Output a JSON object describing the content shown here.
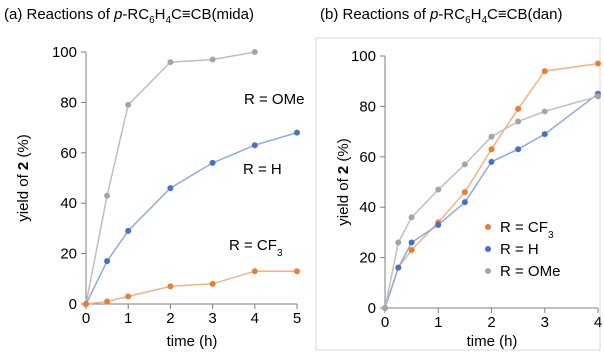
{
  "figure": {
    "colors": {
      "axis": "#7f7f7f",
      "text": "#000000"
    }
  },
  "chart_data": [
    {
      "type": "line",
      "title": {
        "prefix": "(a) Reactions of ",
        "italic": "p",
        "main": "-RC",
        "sub1": "6",
        "mid": "H",
        "sub2": "4",
        "suffix": "C≡CB(mida)"
      },
      "xlabel": "time (h)",
      "ylabel": {
        "pre": "yield of ",
        "bold": "2",
        "post": " (%)"
      },
      "xlim": [
        0,
        5
      ],
      "ylim": [
        0,
        100
      ],
      "xticks": [
        "0",
        "1",
        "2",
        "3",
        "4",
        "5"
      ],
      "yticks": [
        "0",
        "20",
        "40",
        "60",
        "80",
        "100"
      ],
      "grid": false,
      "series": [
        {
          "name": "R = OMe",
          "label_main": "R = OMe",
          "label_sub": "",
          "color": "#a5a5a5",
          "line_color": "#bfbfbf",
          "x": [
            0,
            0.5,
            1,
            2,
            3,
            4
          ],
          "y": [
            0,
            43,
            79,
            96,
            97,
            100
          ]
        },
        {
          "name": "R = H",
          "label_main": "R = H",
          "label_sub": "",
          "color": "#4472c4",
          "line_color": "#8faadc",
          "x": [
            0,
            0.5,
            1,
            2,
            3,
            4,
            5
          ],
          "y": [
            0,
            17,
            29,
            46,
            56,
            63,
            68
          ]
        },
        {
          "name": "R = CF3",
          "label_main": "R = CF",
          "label_sub": "3",
          "color": "#ed7d31",
          "line_color": "#f4b183",
          "x": [
            0,
            0.5,
            1,
            2,
            3,
            4,
            5
          ],
          "y": [
            0,
            1,
            3,
            7,
            8,
            13,
            13
          ]
        }
      ]
    },
    {
      "type": "line",
      "title": {
        "prefix": "(b) Reactions of ",
        "italic": "p",
        "main": "-RC",
        "sub1": "6",
        "mid": "H",
        "sub2": "4",
        "suffix": "C≡CB(dan)"
      },
      "xlabel": "time (h)",
      "ylabel": {
        "pre": "yield of ",
        "bold": "2",
        "post": " (%)"
      },
      "xlim": [
        0,
        4
      ],
      "ylim": [
        0,
        100
      ],
      "xticks": [
        "0",
        "1",
        "2",
        "3",
        "4"
      ],
      "yticks": [
        "0",
        "20",
        "40",
        "60",
        "80",
        "100"
      ],
      "grid": false,
      "legend": "bottom-right",
      "series": [
        {
          "name": "R = CF3",
          "label_main": "R = CF",
          "label_sub": "3",
          "color": "#ed7d31",
          "line_color": "#f4b183",
          "x": [
            0,
            0.25,
            0.5,
            1,
            1.5,
            2,
            2.5,
            3,
            4
          ],
          "y": [
            0,
            16,
            23,
            34,
            46,
            63,
            79,
            94,
            97
          ]
        },
        {
          "name": "R = H",
          "label_main": "R = H",
          "label_sub": "",
          "color": "#4472c4",
          "line_color": "#8faadc",
          "x": [
            0,
            0.25,
            0.5,
            1,
            1.5,
            2,
            2.5,
            3,
            4
          ],
          "y": [
            0,
            16,
            26,
            33,
            42,
            58,
            63,
            69,
            85
          ]
        },
        {
          "name": "R = OMe",
          "label_main": "R = OMe",
          "label_sub": "",
          "color": "#a5a5a5",
          "line_color": "#bfbfbf",
          "x": [
            0,
            0.25,
            0.5,
            1,
            1.5,
            2,
            2.5,
            3,
            4
          ],
          "y": [
            0,
            26,
            36,
            47,
            57,
            68,
            74,
            78,
            84
          ]
        }
      ]
    }
  ]
}
